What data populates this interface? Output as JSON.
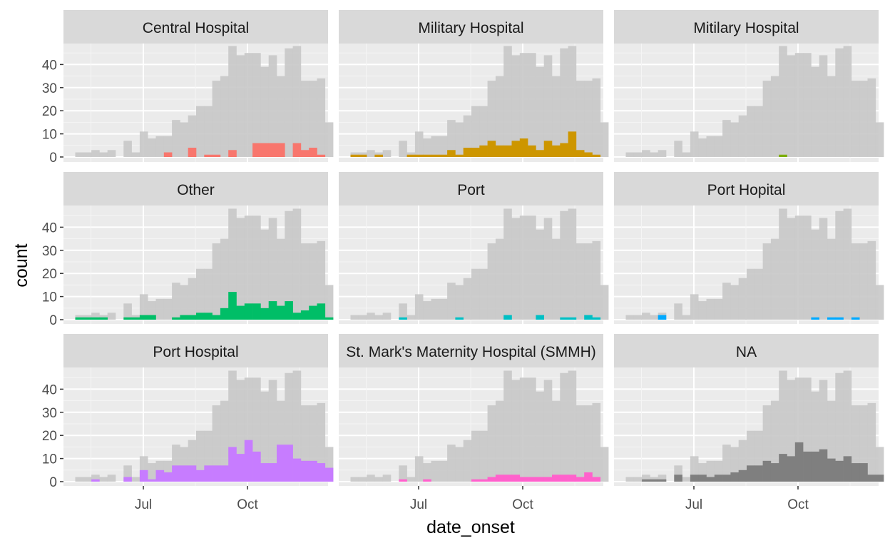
{
  "chart_data": {
    "type": "bar",
    "chart_kind": "faceted-histogram",
    "xlabel": "date_onset",
    "ylabel": "count",
    "x_ticks": [
      "Jul",
      "Oct"
    ],
    "y_ticks": [
      "0",
      "10",
      "20",
      "30",
      "40"
    ],
    "ylim": [
      0,
      49
    ],
    "background_series_color": "#c8c8c8",
    "panel_background": "#ebebeb",
    "strip_background": "#d9d9d9",
    "bins_start_week": 0,
    "total": [
      2,
      2,
      3,
      2,
      3,
      0,
      7,
      2,
      11,
      8,
      9,
      9,
      16,
      15,
      18,
      22,
      22,
      33,
      35,
      48,
      44,
      45,
      45,
      39,
      44,
      35,
      47,
      48,
      33,
      33,
      34,
      15
    ],
    "facets": [
      {
        "name": "Central Hospital",
        "color": "#F8766D",
        "values": [
          0,
          0,
          0,
          0,
          0,
          0,
          0,
          0,
          0,
          0,
          0,
          2,
          0,
          0,
          4,
          0,
          1,
          1,
          0,
          3,
          0,
          0,
          6,
          6,
          6,
          6,
          0,
          6,
          3,
          4,
          1,
          0
        ]
      },
      {
        "name": "Military Hospital",
        "color": "#CD9600",
        "values": [
          1,
          1,
          0,
          1,
          0,
          0,
          0,
          1,
          1,
          1,
          1,
          1,
          3,
          1,
          4,
          4,
          5,
          7,
          5,
          5,
          7,
          8,
          5,
          3,
          7,
          5,
          6,
          11,
          3,
          2,
          1,
          0
        ]
      },
      {
        "name": "Mitilary Hospital",
        "color": "#7CAE00",
        "values": [
          0,
          0,
          0,
          0,
          0,
          0,
          0,
          0,
          0,
          0,
          0,
          0,
          0,
          0,
          0,
          0,
          0,
          0,
          0,
          1,
          0,
          0,
          0,
          0,
          0,
          0,
          0,
          0,
          0,
          0,
          0,
          0
        ]
      },
      {
        "name": "Other",
        "color": "#00BE67",
        "values": [
          1,
          1,
          1,
          1,
          0,
          0,
          1,
          1,
          2,
          2,
          0,
          0,
          1,
          2,
          2,
          3,
          3,
          2,
          5,
          12,
          6,
          7,
          7,
          5,
          8,
          6,
          8,
          3,
          4,
          6,
          7,
          1
        ]
      },
      {
        "name": "Port",
        "color": "#00BFC4",
        "values": [
          0,
          0,
          0,
          0,
          0,
          0,
          1,
          0,
          0,
          0,
          0,
          0,
          0,
          1,
          0,
          0,
          0,
          0,
          0,
          2,
          0,
          0,
          0,
          2,
          0,
          0,
          1,
          1,
          0,
          2,
          1,
          0
        ]
      },
      {
        "name": "Port Hopital",
        "color": "#00A9FF",
        "values": [
          0,
          0,
          0,
          0,
          2,
          0,
          0,
          0,
          0,
          0,
          0,
          0,
          0,
          0,
          0,
          0,
          0,
          0,
          0,
          0,
          0,
          0,
          0,
          1,
          0,
          1,
          1,
          0,
          1,
          0,
          0,
          0
        ]
      },
      {
        "name": "Port Hospital",
        "color": "#C77CFF",
        "values": [
          0,
          0,
          1,
          0,
          0,
          0,
          2,
          0,
          5,
          1,
          5,
          4,
          7,
          7,
          7,
          5,
          7,
          7,
          7,
          15,
          12,
          18,
          13,
          8,
          8,
          16,
          16,
          10,
          9,
          9,
          8,
          6
        ]
      },
      {
        "name": "St. Mark's Maternity Hospital (SMMH)",
        "color": "#FF61CC",
        "values": [
          0,
          0,
          0,
          0,
          0,
          0,
          1,
          0,
          0,
          1,
          0,
          0,
          0,
          0,
          0,
          1,
          1,
          2,
          3,
          3,
          3,
          2,
          2,
          2,
          2,
          3,
          3,
          3,
          2,
          4,
          2,
          0
        ]
      },
      {
        "name": "NA",
        "color": "#7F7F7F",
        "values": [
          0,
          0,
          1,
          1,
          1,
          0,
          3,
          0,
          3,
          3,
          2,
          3,
          3,
          4,
          5,
          7,
          7,
          9,
          8,
          12,
          11,
          17,
          13,
          13,
          14,
          10,
          9,
          11,
          8,
          8,
          3,
          3
        ]
      }
    ]
  }
}
